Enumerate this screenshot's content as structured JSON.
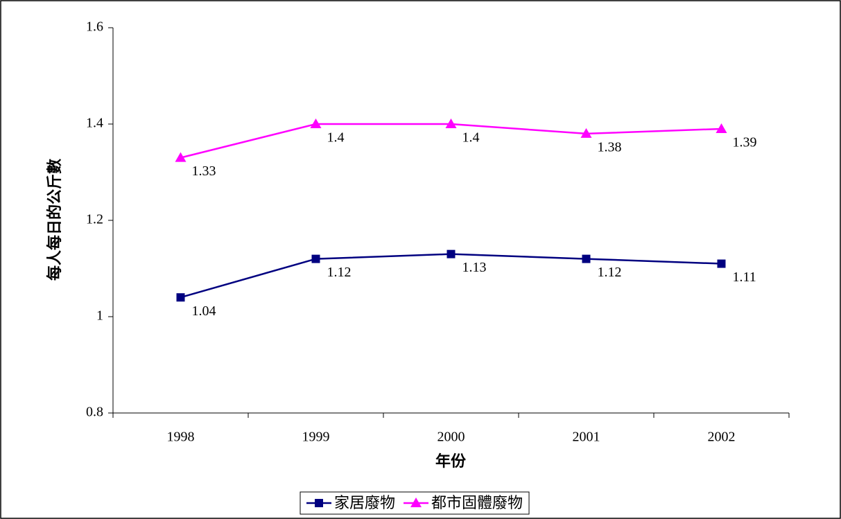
{
  "chart_data": {
    "type": "line",
    "x_label": "年份",
    "y_label": "每人每日的公斤數",
    "categories": [
      "1998",
      "1999",
      "2000",
      "2001",
      "2002"
    ],
    "series": [
      {
        "name": "家居廢物",
        "color": "#000080",
        "marker": "square",
        "values": [
          1.04,
          1.12,
          1.13,
          1.12,
          1.11
        ]
      },
      {
        "name": "都市固體廢物",
        "color": "#ff00ff",
        "marker": "triangle",
        "values": [
          1.33,
          1.4,
          1.4,
          1.38,
          1.39
        ]
      }
    ],
    "ylim": [
      0.8,
      1.6
    ],
    "yticks": [
      0.8,
      1,
      1.2,
      1.4,
      1.6
    ],
    "grid": false,
    "legend": "bottom"
  }
}
